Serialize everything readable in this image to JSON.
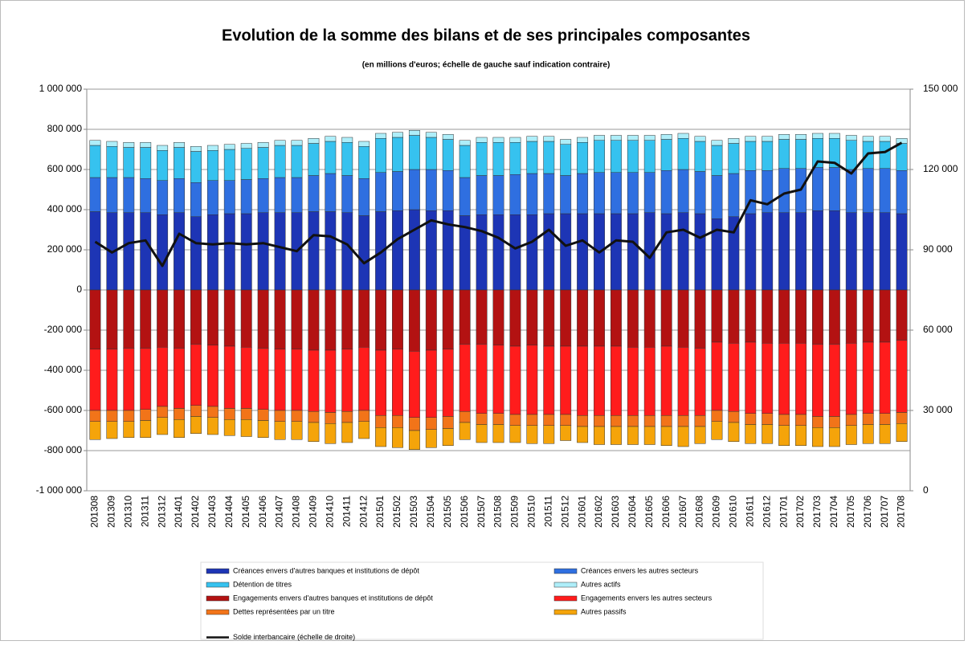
{
  "chart_data": {
    "type": "bar",
    "title": "Evolution de la somme des bilans et de ses principales composantes",
    "subtitle": "(en millions d'euros; échelle de gauche sauf indication contraire)",
    "categories": [
      "201308",
      "201309",
      "201310",
      "201311",
      "201312",
      "201401",
      "201402",
      "201403",
      "201404",
      "201405",
      "201406",
      "201407",
      "201408",
      "201409",
      "201410",
      "201411",
      "201412",
      "201501",
      "201502",
      "201503",
      "201504",
      "201505",
      "201506",
      "201507",
      "201508",
      "201509",
      "201510",
      "201511",
      "201512",
      "201601",
      "201602",
      "201603",
      "201604",
      "201605",
      "201606",
      "201607",
      "201608",
      "201609",
      "201610",
      "201611",
      "201612",
      "201701",
      "201702",
      "201703",
      "201704",
      "201705",
      "201706",
      "201707",
      "201708"
    ],
    "ylim": [
      -1000000,
      1000000
    ],
    "yticks": [
      {
        "value": -1000000,
        "label": "-1 000 000"
      },
      {
        "value": -800000,
        "label": "-800 000"
      },
      {
        "value": -600000,
        "label": "-600 000"
      },
      {
        "value": -400000,
        "label": "-400 000"
      },
      {
        "value": -200000,
        "label": "-200 000"
      },
      0,
      {
        "value": 200000,
        "label": "200 000"
      },
      {
        "value": 400000,
        "label": "400 000"
      },
      {
        "value": 600000,
        "label": "600 000"
      },
      {
        "value": 800000,
        "label": "800 000"
      },
      {
        "value": 1000000,
        "label": "1 000 000"
      }
    ],
    "y2lim": [
      0,
      150000
    ],
    "y2ticks": [
      0,
      {
        "value": 30000,
        "label": "30 000"
      },
      {
        "value": 60000,
        "label": "60 000"
      },
      {
        "value": 90000,
        "label": "90 000"
      },
      {
        "value": 120000,
        "label": "120 000"
      },
      {
        "value": 150000,
        "label": "150 000"
      }
    ],
    "grid": true,
    "legend": "bottom",
    "series": [
      {
        "name": "Créances envers d'autres banques et institutions de dépôt",
        "color": "#1d35b5",
        "values": [
          390000,
          385000,
          385000,
          385000,
          375000,
          385000,
          365000,
          375000,
          380000,
          380000,
          385000,
          385000,
          385000,
          390000,
          390000,
          385000,
          370000,
          390000,
          395000,
          400000,
          395000,
          395000,
          370000,
          375000,
          375000,
          375000,
          375000,
          380000,
          380000,
          380000,
          380000,
          380000,
          380000,
          385000,
          380000,
          385000,
          380000,
          355000,
          365000,
          380000,
          385000,
          385000,
          385000,
          395000,
          395000,
          385000,
          385000,
          385000,
          380000
        ]
      },
      {
        "name": "Créances envers les autres secteurs",
        "color": "#2f6fe0",
        "values": [
          170000,
          175000,
          175000,
          170000,
          170000,
          170000,
          170000,
          170000,
          165000,
          170000,
          170000,
          175000,
          175000,
          180000,
          190000,
          185000,
          185000,
          195000,
          195000,
          200000,
          205000,
          200000,
          190000,
          195000,
          195000,
          200000,
          205000,
          200000,
          190000,
          200000,
          205000,
          205000,
          205000,
          200000,
          215000,
          215000,
          210000,
          215000,
          215000,
          215000,
          210000,
          220000,
          220000,
          215000,
          215000,
          215000,
          220000,
          220000,
          215000
        ]
      },
      {
        "name": "Détention de titres",
        "color": "#36c2ef",
        "values": [
          160000,
          155000,
          150000,
          155000,
          150000,
          155000,
          155000,
          150000,
          155000,
          155000,
          155000,
          160000,
          160000,
          160000,
          160000,
          165000,
          160000,
          170000,
          170000,
          170000,
          160000,
          155000,
          160000,
          165000,
          165000,
          160000,
          160000,
          160000,
          155000,
          155000,
          160000,
          160000,
          160000,
          160000,
          155000,
          155000,
          150000,
          150000,
          150000,
          145000,
          145000,
          145000,
          145000,
          145000,
          145000,
          145000,
          135000,
          135000,
          135000
        ]
      },
      {
        "name": "Autres actifs",
        "color": "#aeeef9",
        "values": [
          25000,
          25000,
          25000,
          25000,
          25000,
          25000,
          25000,
          25000,
          25000,
          25000,
          25000,
          25000,
          25000,
          25000,
          25000,
          25000,
          25000,
          25000,
          25000,
          25000,
          25000,
          25000,
          25000,
          25000,
          25000,
          25000,
          25000,
          25000,
          25000,
          25000,
          25000,
          25000,
          25000,
          25000,
          25000,
          25000,
          25000,
          25000,
          25000,
          25000,
          25000,
          25000,
          25000,
          25000,
          25000,
          25000,
          25000,
          25000,
          25000
        ]
      },
      {
        "name": "Engagements envers d'autres banques et institutions de dépôt",
        "color": "#b31212",
        "values": [
          -295000,
          -295000,
          -290000,
          -290000,
          -285000,
          -290000,
          -270000,
          -275000,
          -280000,
          -285000,
          -290000,
          -295000,
          -295000,
          -300000,
          -300000,
          -295000,
          -285000,
          -300000,
          -295000,
          -305000,
          -300000,
          -295000,
          -270000,
          -270000,
          -275000,
          -280000,
          -275000,
          -280000,
          -280000,
          -280000,
          -280000,
          -280000,
          -285000,
          -285000,
          -280000,
          -285000,
          -290000,
          -260000,
          -265000,
          -260000,
          -265000,
          -265000,
          -265000,
          -270000,
          -270000,
          -265000,
          -260000,
          -260000,
          -250000
        ]
      },
      {
        "name": "Engagements envers les autres secteurs",
        "color": "#ff1c1c",
        "values": [
          -305000,
          -305000,
          -310000,
          -305000,
          -295000,
          -300000,
          -305000,
          -305000,
          -310000,
          -305000,
          -305000,
          -305000,
          -305000,
          -305000,
          -310000,
          -310000,
          -315000,
          -325000,
          -330000,
          -330000,
          -335000,
          -335000,
          -335000,
          -345000,
          -340000,
          -340000,
          -345000,
          -340000,
          -340000,
          -345000,
          -345000,
          -345000,
          -340000,
          -340000,
          -345000,
          -340000,
          -335000,
          -340000,
          -340000,
          -355000,
          -350000,
          -355000,
          -355000,
          -360000,
          -360000,
          -355000,
          -355000,
          -355000,
          -360000
        ]
      },
      {
        "name": "Dettes représentées par un titre",
        "color": "#f27419",
        "values": [
          -55000,
          -55000,
          -55000,
          -55000,
          -55000,
          -55000,
          -55000,
          -55000,
          -55000,
          -55000,
          -55000,
          -55000,
          -55000,
          -55000,
          -55000,
          -55000,
          -55000,
          -60000,
          -60000,
          -65000,
          -60000,
          -60000,
          -55000,
          -55000,
          -55000,
          -55000,
          -55000,
          -55000,
          -55000,
          -55000,
          -55000,
          -55000,
          -55000,
          -55000,
          -55000,
          -55000,
          -55000,
          -55000,
          -55000,
          -55000,
          -55000,
          -55000,
          -55000,
          -55000,
          -55000,
          -55000,
          -55000,
          -55000,
          -55000
        ]
      },
      {
        "name": "Autres passifs",
        "color": "#f5a40a",
        "values": [
          -90000,
          -85000,
          -80000,
          -85000,
          -85000,
          -90000,
          -85000,
          -85000,
          -80000,
          -85000,
          -85000,
          -90000,
          -90000,
          -95000,
          -100000,
          -100000,
          -85000,
          -95000,
          -100000,
          -95000,
          -90000,
          -85000,
          -85000,
          -90000,
          -90000,
          -85000,
          -90000,
          -90000,
          -75000,
          -80000,
          -90000,
          -90000,
          -90000,
          -90000,
          -95000,
          -100000,
          -85000,
          -90000,
          -95000,
          -95000,
          -95000,
          -100000,
          -100000,
          -95000,
          -95000,
          -95000,
          -95000,
          -95000,
          -90000
        ]
      },
      {
        "name": "Solde interbancaire (échelle de droite)",
        "color": "#111111",
        "type": "line",
        "axis": "y2",
        "values": [
          93000,
          89000,
          92500,
          93500,
          84000,
          96000,
          92500,
          92000,
          92500,
          92000,
          92500,
          91000,
          89500,
          95500,
          95000,
          92000,
          85000,
          89000,
          94000,
          97500,
          101000,
          99500,
          98500,
          97000,
          94500,
          90500,
          93000,
          97500,
          91500,
          93500,
          89000,
          93500,
          93000,
          87000,
          96500,
          97500,
          94500,
          97500,
          96500,
          108500,
          107000,
          111000,
          112500,
          123000,
          122500,
          118500,
          126000,
          126500,
          130000
        ]
      }
    ]
  }
}
